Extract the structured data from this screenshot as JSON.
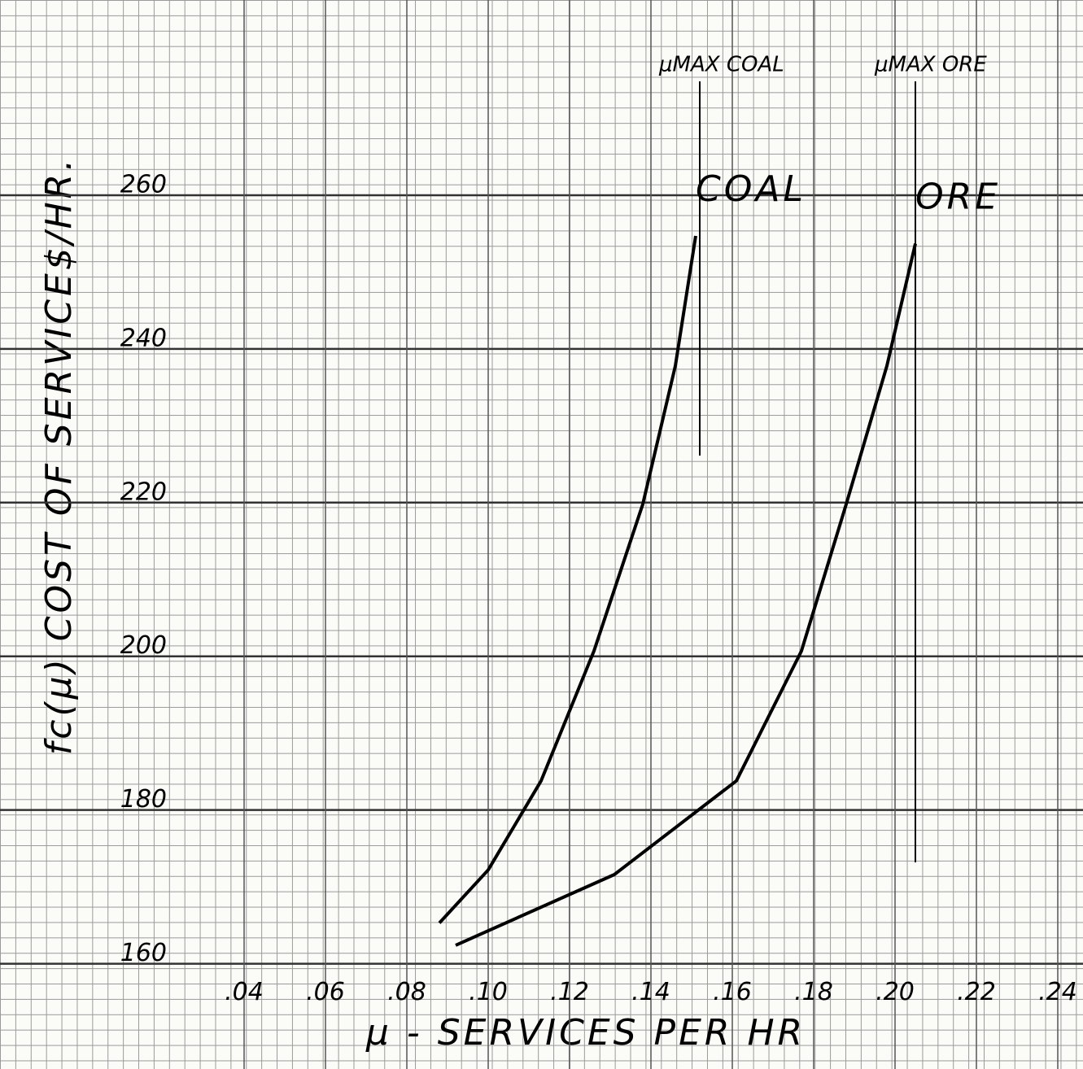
{
  "chart_data": {
    "type": "line",
    "y_label": "fc(μ) COST OF SERVICE$/HR.",
    "x_label": "μ - SERVICES PER HR",
    "series": [
      {
        "name": "COAL",
        "color": "#000000",
        "x": [
          0.088,
          0.1,
          0.113,
          0.126,
          0.138,
          0.146,
          0.151
        ],
        "values": [
          165.3,
          172.2,
          183.8,
          200.7,
          219.8,
          237.8,
          254.7
        ]
      },
      {
        "name": "ORE",
        "color": "#000000",
        "x": [
          0.092,
          0.131,
          0.161,
          0.177,
          0.188,
          0.198,
          0.205
        ],
        "values": [
          162.4,
          171.6,
          183.8,
          200.7,
          219.8,
          237.8,
          253.7
        ]
      }
    ],
    "annotations": [
      {
        "text": "μMAX COAL",
        "x": 0.152
      },
      {
        "text": "μMAX ORE",
        "x": 0.205
      }
    ],
    "xlim": [
      -0.02,
      0.2462
    ],
    "ylim": [
      146.3,
      285.4
    ],
    "xticks": [
      {
        "value": 0.04,
        "label": ".04"
      },
      {
        "value": 0.06,
        "label": ".06"
      },
      {
        "value": 0.08,
        "label": ".08"
      },
      {
        "value": 0.1,
        "label": ".10"
      },
      {
        "value": 0.12,
        "label": ".12"
      },
      {
        "value": 0.14,
        "label": ".14"
      },
      {
        "value": 0.16,
        "label": ".16"
      },
      {
        "value": 0.18,
        "label": ".18"
      },
      {
        "value": 0.2,
        "label": ".20"
      },
      {
        "value": 0.22,
        "label": ".22"
      },
      {
        "value": 0.24,
        "label": ".24"
      }
    ],
    "yticks": [
      160,
      180,
      200,
      220,
      240,
      260
    ],
    "grid": true
  }
}
